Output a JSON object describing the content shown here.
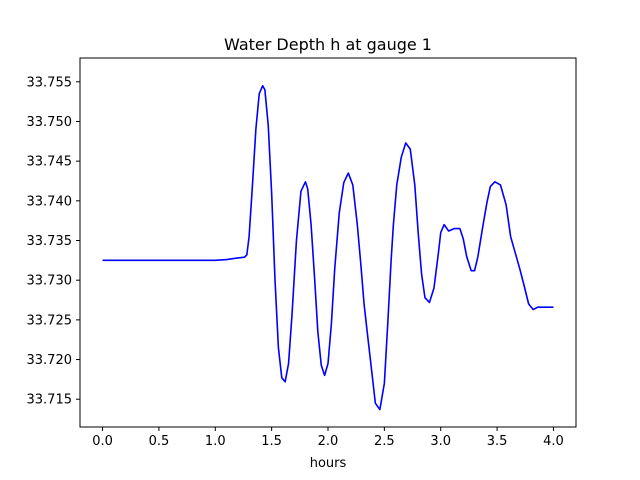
{
  "chart_data": {
    "type": "line",
    "title": "Water Depth h at gauge 1",
    "xlabel": "hours",
    "ylabel": "",
    "xlim": [
      -0.2,
      4.2
    ],
    "ylim": [
      33.7115,
      33.758
    ],
    "xticks": [
      0.0,
      0.5,
      1.0,
      1.5,
      2.0,
      2.5,
      3.0,
      3.5,
      4.0
    ],
    "xtick_labels": [
      "0.0",
      "0.5",
      "1.0",
      "1.5",
      "2.0",
      "2.5",
      "3.0",
      "3.5",
      "4.0"
    ],
    "yticks": [
      33.715,
      33.72,
      33.725,
      33.73,
      33.735,
      33.74,
      33.745,
      33.75,
      33.755
    ],
    "ytick_labels": [
      "33.715",
      "33.720",
      "33.725",
      "33.730",
      "33.735",
      "33.740",
      "33.745",
      "33.750",
      "33.755"
    ],
    "grid": false,
    "legend": "none",
    "series": [
      {
        "color": "#0000ff",
        "x": [
          0.0,
          0.2,
          0.4,
          0.6,
          0.8,
          1.0,
          1.1,
          1.2,
          1.26,
          1.28,
          1.3,
          1.33,
          1.36,
          1.39,
          1.42,
          1.44,
          1.47,
          1.5,
          1.53,
          1.56,
          1.59,
          1.62,
          1.65,
          1.68,
          1.72,
          1.76,
          1.8,
          1.82,
          1.85,
          1.88,
          1.91,
          1.94,
          1.97,
          2.0,
          2.03,
          2.06,
          2.1,
          2.14,
          2.18,
          2.22,
          2.26,
          2.29,
          2.32,
          2.35,
          2.38,
          2.42,
          2.46,
          2.5,
          2.53,
          2.56,
          2.58,
          2.61,
          2.65,
          2.69,
          2.73,
          2.77,
          2.8,
          2.83,
          2.86,
          2.9,
          2.94,
          2.98,
          3.0,
          3.03,
          3.07,
          3.12,
          3.17,
          3.2,
          3.23,
          3.27,
          3.3,
          3.33,
          3.37,
          3.41,
          3.44,
          3.48,
          3.53,
          3.58,
          3.62,
          3.66,
          3.7,
          3.74,
          3.78,
          3.82,
          3.86,
          3.9,
          3.93,
          3.96,
          4.0
        ],
        "y": [
          33.7325,
          33.7325,
          33.7325,
          33.7325,
          33.7325,
          33.7325,
          33.7326,
          33.7328,
          33.7329,
          33.7332,
          33.7355,
          33.742,
          33.749,
          33.7535,
          33.7545,
          33.754,
          33.7495,
          33.741,
          33.73,
          33.7215,
          33.7177,
          33.7172,
          33.7195,
          33.7255,
          33.735,
          33.7412,
          33.7424,
          33.7415,
          33.737,
          33.7305,
          33.7235,
          33.7193,
          33.718,
          33.7195,
          33.7245,
          33.7315,
          33.7385,
          33.7423,
          33.7435,
          33.742,
          33.737,
          33.7322,
          33.727,
          33.7232,
          33.7195,
          33.7145,
          33.7137,
          33.717,
          33.7245,
          33.7325,
          33.737,
          33.742,
          33.7455,
          33.7473,
          33.7465,
          33.742,
          33.736,
          33.7308,
          33.7278,
          33.7272,
          33.729,
          33.7335,
          33.736,
          33.737,
          33.7362,
          33.7365,
          33.7365,
          33.7352,
          33.733,
          33.7312,
          33.7312,
          33.733,
          33.7365,
          33.7398,
          33.7418,
          33.7424,
          33.742,
          33.7395,
          33.7355,
          33.7335,
          33.7315,
          33.7293,
          33.727,
          33.7263,
          33.7266,
          33.7266,
          33.7266,
          33.7266,
          33.7266
        ]
      }
    ]
  }
}
